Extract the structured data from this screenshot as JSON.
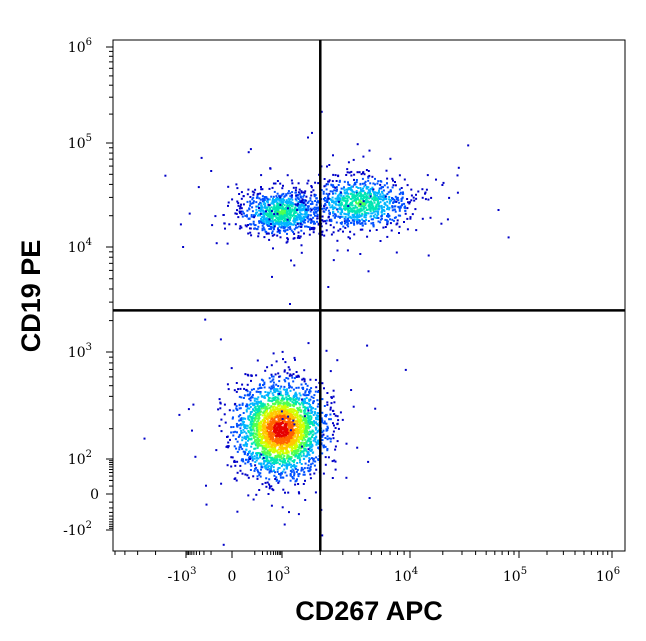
{
  "chart_data": {
    "type": "scatter",
    "subtype": "flow-cytometry-density-dot-plot",
    "xlabel": "CD267 APC",
    "ylabel": "CD19 PE",
    "x_scale": "biexponential",
    "y_scale": "biexponential",
    "xlim": [
      -5000,
      1200000
    ],
    "ylim": [
      -200,
      1200000
    ],
    "x_ticks": [
      {
        "value": -1000,
        "base": "-10",
        "exp": "3"
      },
      {
        "value": 0,
        "base": "0",
        "exp": ""
      },
      {
        "value": 1000,
        "base": "10",
        "exp": "3"
      },
      {
        "value": 10000,
        "base": "10",
        "exp": "4"
      },
      {
        "value": 100000,
        "base": "10",
        "exp": "5"
      },
      {
        "value": 1000000,
        "base": "10",
        "exp": "6"
      }
    ],
    "y_ticks": [
      {
        "value": -100,
        "base": "-10",
        "exp": "2"
      },
      {
        "value": 0,
        "base": "0",
        "exp": ""
      },
      {
        "value": 100,
        "base": "10",
        "exp": "2"
      },
      {
        "value": 1000,
        "base": "10",
        "exp": "3"
      },
      {
        "value": 10000,
        "base": "10",
        "exp": "4"
      },
      {
        "value": 100000,
        "base": "10",
        "exp": "5"
      },
      {
        "value": 1000000,
        "base": "10",
        "exp": "6"
      }
    ],
    "quadrant_gate": {
      "x": 2000,
      "y": 2500
    },
    "populations": [
      {
        "name_hint": "CD19+ CD267-",
        "x_center": 900,
        "y_center": 22000,
        "density": "medium"
      },
      {
        "name_hint": "CD19+ CD267+",
        "x_center": 4000,
        "y_center": 27000,
        "density": "medium"
      },
      {
        "name_hint": "CD19- CD267-",
        "x_center": 850,
        "y_center": 200,
        "density": "high"
      }
    ],
    "colormap": [
      "#0000c8",
      "#0050ff",
      "#00b4ff",
      "#00e6b4",
      "#50ff50",
      "#d2ff00",
      "#ffc800",
      "#ff6400",
      "#e60000"
    ],
    "grid": false,
    "legend": "none"
  }
}
